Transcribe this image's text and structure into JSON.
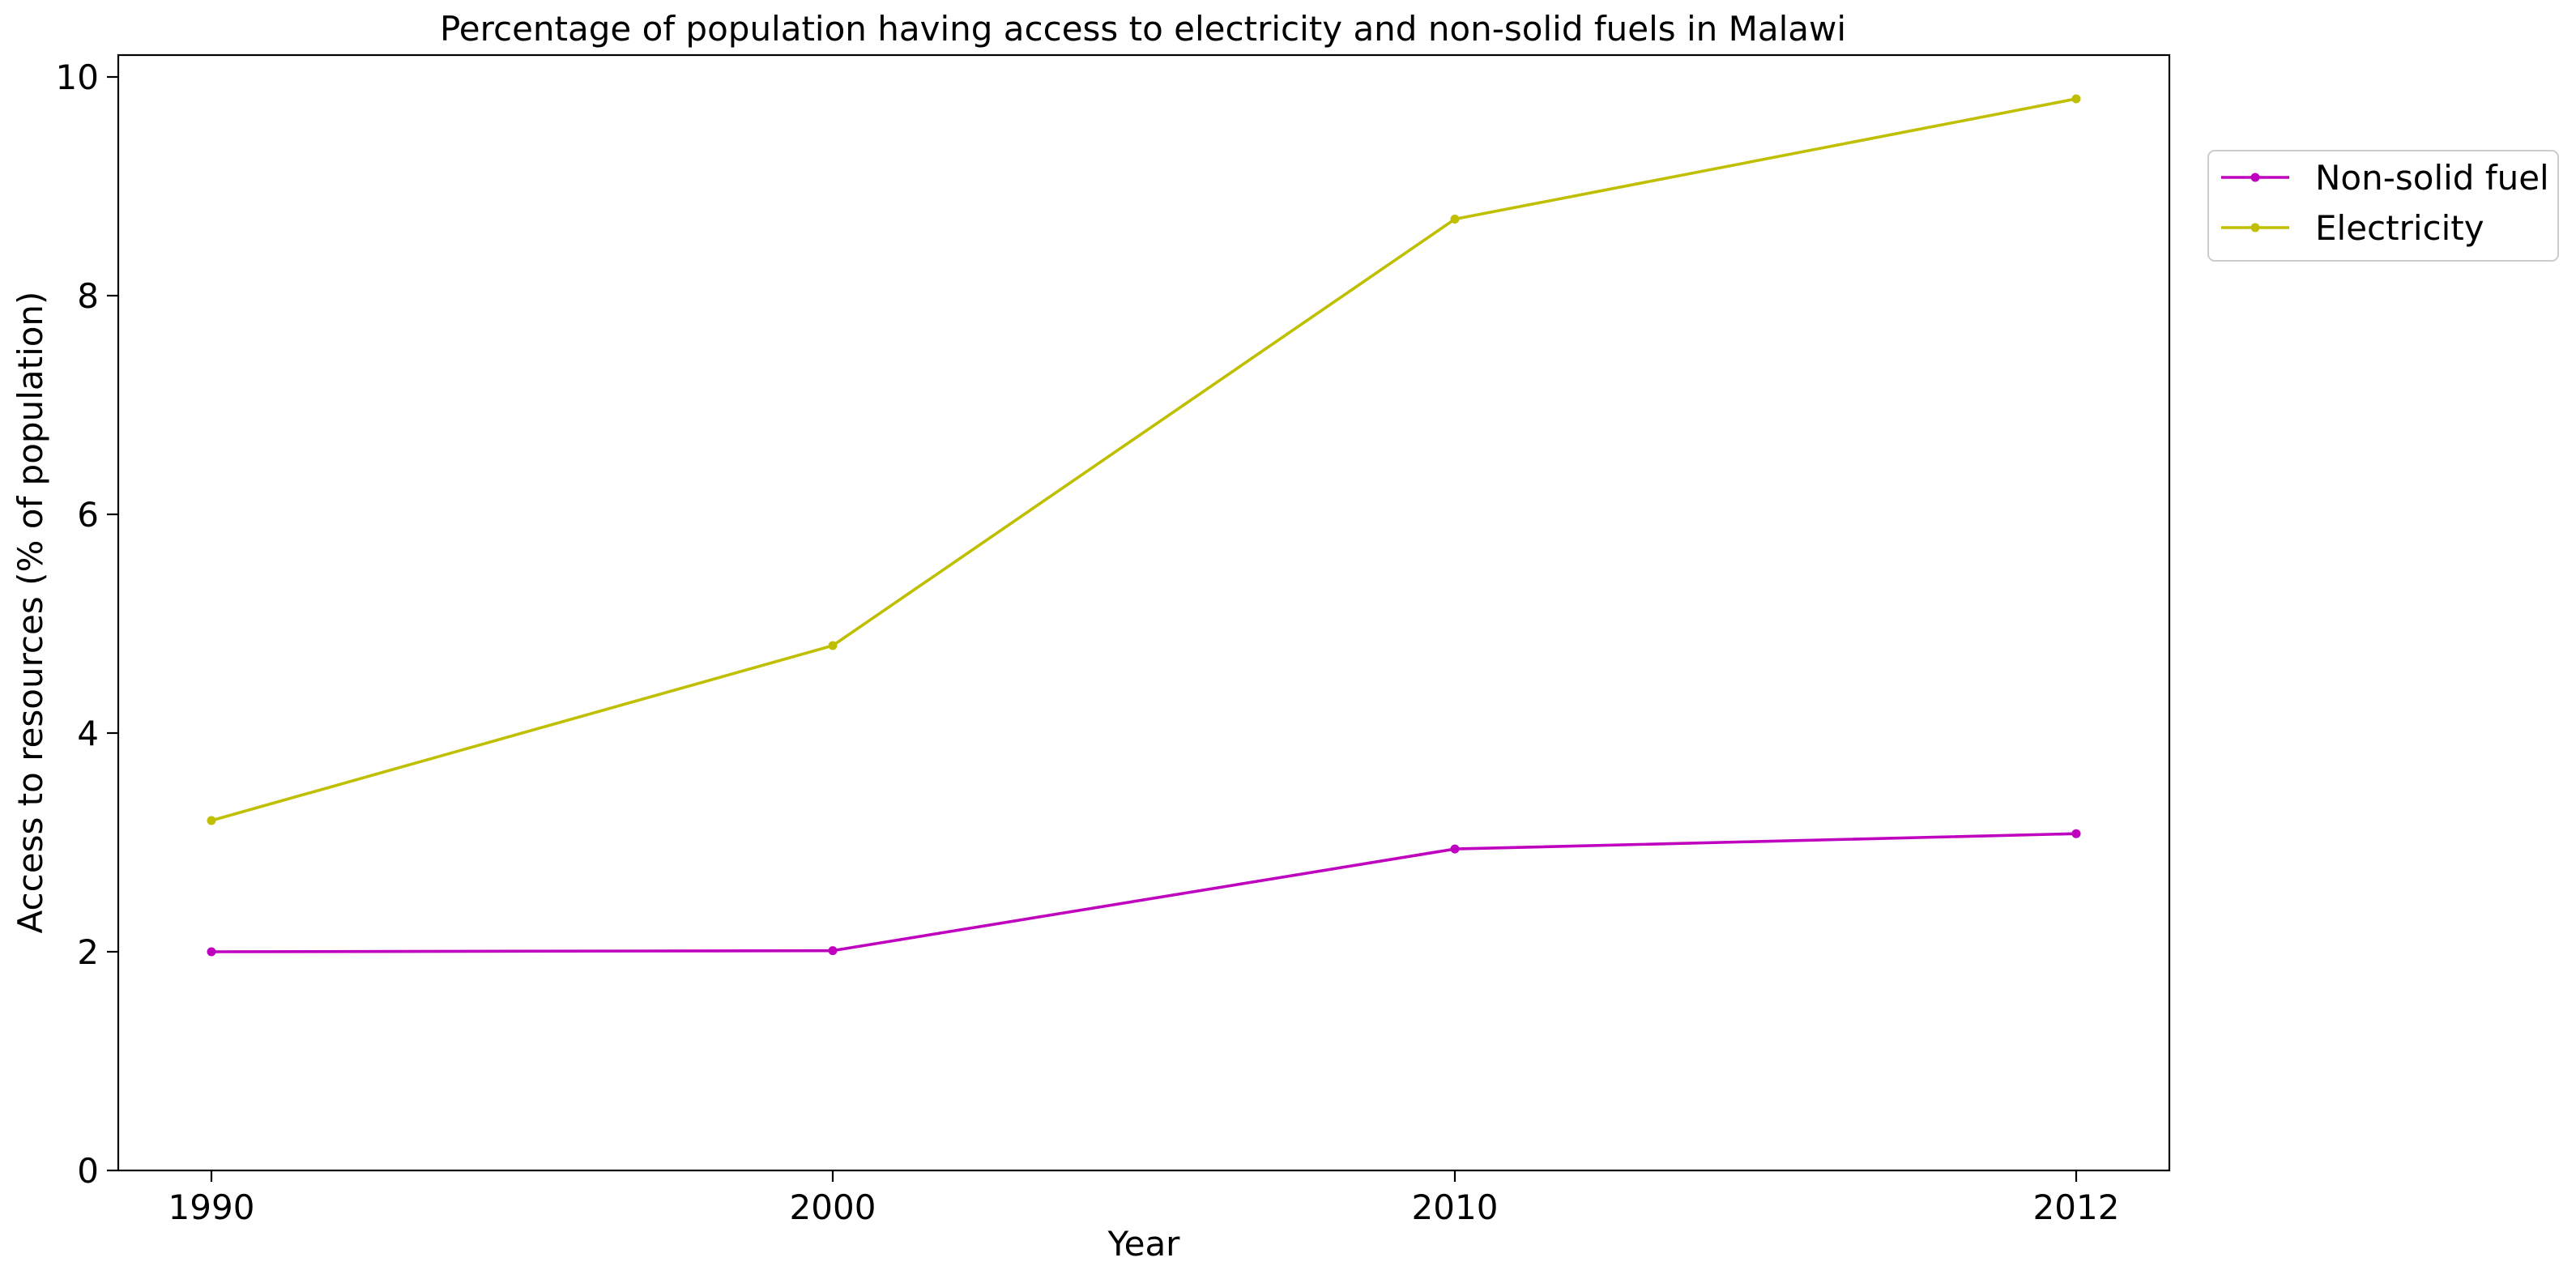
{
  "chart_data": {
    "type": "line",
    "title": "Percentage of population having access to electricity and non-solid fuels in Malawi",
    "xlabel": "Year",
    "ylabel": "Access to resources (% of population)",
    "x": [
      "1990",
      "2000",
      "2010",
      "2012"
    ],
    "x_tick_labels": [
      "1990",
      "2000",
      "2010",
      "2012"
    ],
    "y_ticks": [
      0,
      2,
      4,
      6,
      8,
      10
    ],
    "ylim": [
      0,
      10.2
    ],
    "grid": false,
    "legend_position": "outside top-right",
    "series": [
      {
        "name": "Non-solid fuel",
        "color": "#bf00bf",
        "values": [
          2.0,
          2.01,
          2.94,
          3.08
        ]
      },
      {
        "name": "Electricity",
        "color": "#bfbf00",
        "values": [
          3.2,
          4.8,
          8.7,
          9.8
        ]
      }
    ]
  }
}
